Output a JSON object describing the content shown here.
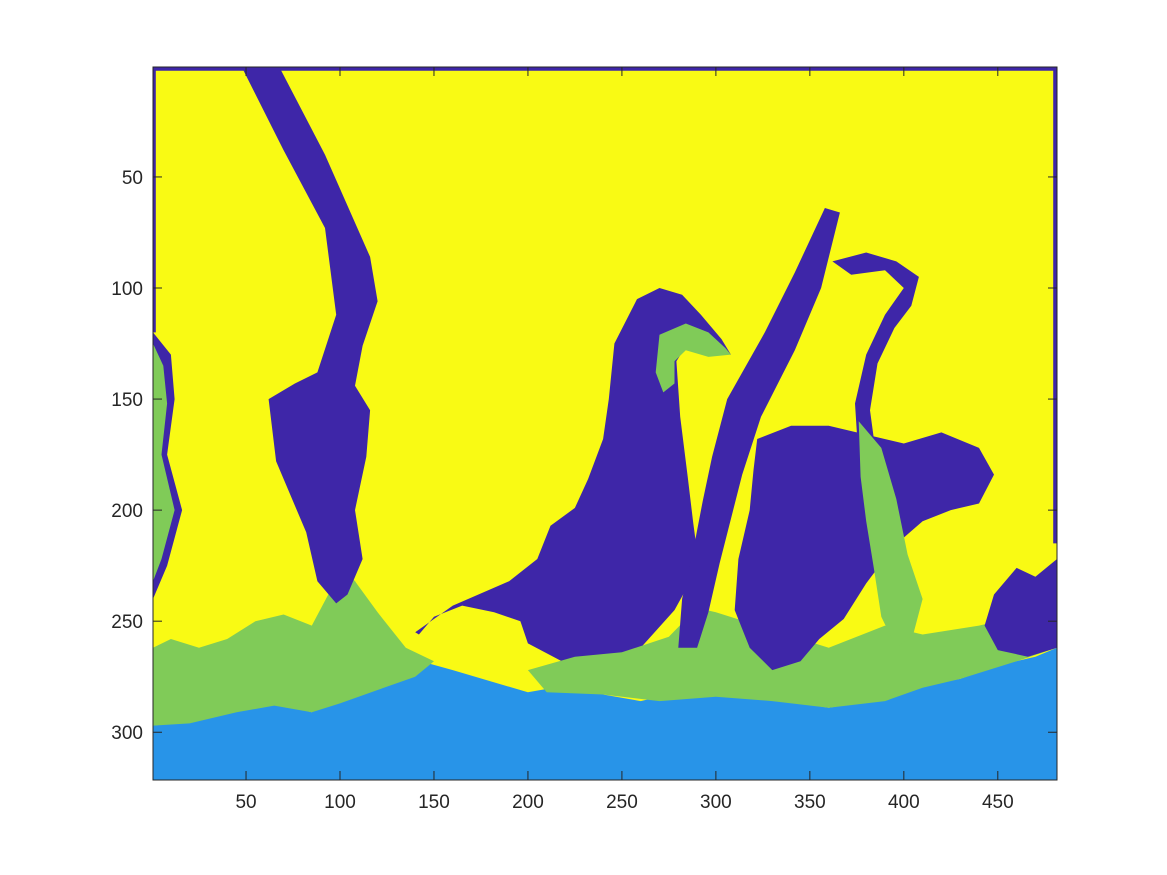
{
  "chart_data": {
    "type": "heatmap",
    "title": "",
    "xlabel": "",
    "ylabel": "",
    "xlim": [
      0.5,
      481.5
    ],
    "ylim": [
      0.5,
      321.5
    ],
    "y_direction": "reversed",
    "grid": false,
    "colorbar": false,
    "x_ticks": [
      50,
      100,
      150,
      200,
      250,
      300,
      350,
      400,
      450
    ],
    "y_ticks": [
      50,
      100,
      150,
      200,
      250,
      300
    ],
    "x_tick_labels": [
      "50",
      "100",
      "150",
      "200",
      "250",
      "300",
      "350",
      "400",
      "450"
    ],
    "y_tick_labels": [
      "50",
      "100",
      "150",
      "200",
      "250",
      "300"
    ],
    "image_size": {
      "columns": 481,
      "rows": 321
    },
    "cluster_labels": [
      1,
      2,
      3,
      4
    ],
    "cluster_colors": {
      "1": "#3e26a8",
      "2": "#2894e8",
      "3": "#80cb58",
      "4": "#f9fa14"
    },
    "background_cluster": 4,
    "regions": [
      {
        "label": 1,
        "name": "bird body",
        "polygon": [
          [
            140,
            255
          ],
          [
            160,
            243
          ],
          [
            190,
            232
          ],
          [
            205,
            222
          ],
          [
            212,
            207
          ],
          [
            225,
            199
          ],
          [
            232,
            186
          ],
          [
            240,
            168
          ],
          [
            243,
            150
          ],
          [
            246,
            125
          ],
          [
            258,
            105
          ],
          [
            270,
            100
          ],
          [
            282,
            103
          ],
          [
            292,
            112
          ],
          [
            303,
            123
          ],
          [
            308,
            130
          ],
          [
            295,
            128
          ],
          [
            285,
            125
          ],
          [
            279,
            133
          ],
          [
            281,
            158
          ],
          [
            285,
            185
          ],
          [
            288,
            206
          ],
          [
            291,
            225
          ],
          [
            278,
            245
          ],
          [
            260,
            262
          ],
          [
            236,
            268
          ],
          [
            218,
            268
          ],
          [
            200,
            260
          ],
          [
            196,
            250
          ],
          [
            182,
            246
          ],
          [
            165,
            243
          ],
          [
            150,
            248
          ],
          [
            142,
            256
          ]
        ]
      },
      {
        "label": 3,
        "name": "beak",
        "polygon": [
          [
            270,
            121
          ],
          [
            284,
            116
          ],
          [
            296,
            120
          ],
          [
            305,
            127
          ],
          [
            308,
            130
          ],
          [
            296,
            131
          ],
          [
            284,
            128
          ],
          [
            278,
            133
          ],
          [
            278,
            143
          ],
          [
            272,
            147
          ],
          [
            268,
            138
          ]
        ]
      },
      {
        "label": 2,
        "name": "water bottom",
        "polygon": [
          [
            0.5,
            321.5
          ],
          [
            0.5,
            297
          ],
          [
            20,
            295
          ],
          [
            45,
            290
          ],
          [
            65,
            287
          ],
          [
            85,
            291
          ],
          [
            95,
            285
          ],
          [
            99,
            262
          ],
          [
            96,
            244
          ],
          [
            108,
            232
          ],
          [
            118,
            248
          ],
          [
            128,
            260
          ],
          [
            143,
            268
          ],
          [
            160,
            272
          ],
          [
            180,
            277
          ],
          [
            200,
            282
          ],
          [
            220,
            279
          ],
          [
            240,
            283
          ],
          [
            260,
            286
          ],
          [
            280,
            282
          ],
          [
            305,
            284
          ],
          [
            330,
            285
          ],
          [
            360,
            289
          ],
          [
            390,
            285
          ],
          [
            410,
            279
          ],
          [
            430,
            276
          ],
          [
            450,
            270
          ],
          [
            470,
            266
          ],
          [
            481.5,
            262
          ],
          [
            481.5,
            321.5
          ]
        ]
      },
      {
        "label": 3,
        "name": "water edge left",
        "polygon": [
          [
            0.5,
            297
          ],
          [
            0.5,
            262
          ],
          [
            10,
            258
          ],
          [
            25,
            262
          ],
          [
            40,
            258
          ],
          [
            55,
            250
          ],
          [
            70,
            247
          ],
          [
            85,
            252
          ],
          [
            95,
            236
          ],
          [
            100,
            225
          ],
          [
            108,
            232
          ],
          [
            120,
            246
          ],
          [
            135,
            262
          ],
          [
            150,
            268
          ],
          [
            140,
            275
          ],
          [
            120,
            281
          ],
          [
            100,
            287
          ],
          [
            85,
            291
          ],
          [
            65,
            288
          ],
          [
            45,
            291
          ],
          [
            20,
            296
          ]
        ]
      },
      {
        "label": 3,
        "name": "water edge right",
        "polygon": [
          [
            200,
            272
          ],
          [
            225,
            266
          ],
          [
            250,
            264
          ],
          [
            275,
            257
          ],
          [
            290,
            244
          ],
          [
            300,
            246
          ],
          [
            330,
            254
          ],
          [
            360,
            262
          ],
          [
            390,
            252
          ],
          [
            410,
            256
          ],
          [
            440,
            252
          ],
          [
            470,
            246
          ],
          [
            481.5,
            244
          ],
          [
            481.5,
            262
          ],
          [
            460,
            268
          ],
          [
            430,
            276
          ],
          [
            410,
            280
          ],
          [
            390,
            286
          ],
          [
            360,
            289
          ],
          [
            330,
            286
          ],
          [
            300,
            284
          ],
          [
            270,
            286
          ],
          [
            240,
            283
          ],
          [
            210,
            282
          ]
        ]
      },
      {
        "label": 3,
        "name": "left plant core",
        "polygon": [
          [
            50,
            1
          ],
          [
            66,
            1
          ],
          [
            88,
            40
          ],
          [
            112,
            88
          ],
          [
            115,
            105
          ],
          [
            108,
            125
          ],
          [
            104,
            145
          ],
          [
            112,
            156
          ],
          [
            110,
            175
          ],
          [
            104,
            200
          ],
          [
            108,
            222
          ],
          [
            102,
            236
          ],
          [
            92,
            232
          ],
          [
            86,
            210
          ],
          [
            72,
            178
          ],
          [
            68,
            150
          ],
          [
            80,
            145
          ],
          [
            94,
            140
          ],
          [
            104,
            110
          ],
          [
            97,
            72
          ],
          [
            74,
            38
          ]
        ]
      },
      {
        "label": 1,
        "name": "left plant outline",
        "polygon": [
          [
            48,
            1
          ],
          [
            68,
            1
          ],
          [
            92,
            40
          ],
          [
            116,
            86
          ],
          [
            120,
            106
          ],
          [
            112,
            126
          ],
          [
            108,
            144
          ],
          [
            116,
            155
          ],
          [
            114,
            176
          ],
          [
            108,
            200
          ],
          [
            112,
            222
          ],
          [
            104,
            238
          ],
          [
            98,
            242
          ],
          [
            88,
            232
          ],
          [
            82,
            210
          ],
          [
            66,
            178
          ],
          [
            62,
            150
          ],
          [
            76,
            143
          ],
          [
            88,
            138
          ],
          [
            98,
            112
          ],
          [
            92,
            73
          ],
          [
            70,
            38
          ]
        ]
      },
      {
        "label": 3,
        "name": "mid plant stem core",
        "polygon": [
          [
            360,
            68
          ],
          [
            362,
            70
          ],
          [
            352,
            100
          ],
          [
            338,
            128
          ],
          [
            318,
            158
          ],
          [
            308,
            182
          ],
          [
            304,
            202
          ],
          [
            298,
            222
          ],
          [
            292,
            244
          ],
          [
            286,
            262
          ],
          [
            283,
            260
          ],
          [
            286,
            240
          ],
          [
            292,
            220
          ],
          [
            297,
            198
          ],
          [
            302,
            178
          ],
          [
            312,
            152
          ],
          [
            332,
            122
          ],
          [
            348,
            95
          ]
        ]
      },
      {
        "label": 1,
        "name": "mid plant stem outline",
        "polygon": [
          [
            358,
            64
          ],
          [
            366,
            66
          ],
          [
            356,
            100
          ],
          [
            342,
            128
          ],
          [
            324,
            158
          ],
          [
            314,
            184
          ],
          [
            308,
            204
          ],
          [
            302,
            224
          ],
          [
            296,
            246
          ],
          [
            290,
            262
          ],
          [
            280,
            262
          ],
          [
            282,
            240
          ],
          [
            288,
            218
          ],
          [
            293,
            196
          ],
          [
            298,
            176
          ],
          [
            306,
            150
          ],
          [
            326,
            120
          ],
          [
            342,
            93
          ]
        ]
      },
      {
        "label": 1,
        "name": "branch arc",
        "polygon": [
          [
            362,
            88
          ],
          [
            380,
            84
          ],
          [
            396,
            88
          ],
          [
            408,
            95
          ],
          [
            404,
            108
          ],
          [
            395,
            118
          ],
          [
            386,
            134
          ],
          [
            382,
            155
          ],
          [
            386,
            180
          ],
          [
            380,
            200
          ],
          [
            374,
            215
          ],
          [
            366,
            220
          ],
          [
            370,
            200
          ],
          [
            376,
            178
          ],
          [
            374,
            152
          ],
          [
            380,
            130
          ],
          [
            390,
            112
          ],
          [
            400,
            100
          ],
          [
            390,
            92
          ],
          [
            372,
            94
          ]
        ]
      },
      {
        "label": 1,
        "name": "right cluster",
        "polygon": [
          [
            322,
            168
          ],
          [
            340,
            162
          ],
          [
            360,
            162
          ],
          [
            380,
            166
          ],
          [
            400,
            170
          ],
          [
            420,
            165
          ],
          [
            440,
            172
          ],
          [
            448,
            184
          ],
          [
            440,
            197
          ],
          [
            425,
            200
          ],
          [
            410,
            205
          ],
          [
            395,
            216
          ],
          [
            380,
            233
          ],
          [
            368,
            249
          ],
          [
            355,
            258
          ],
          [
            345,
            268
          ],
          [
            330,
            272
          ],
          [
            318,
            262
          ],
          [
            310,
            245
          ],
          [
            312,
            222
          ],
          [
            318,
            200
          ],
          [
            320,
            182
          ]
        ]
      },
      {
        "label": 3,
        "name": "right plant core",
        "polygon": [
          [
            376,
            160
          ],
          [
            388,
            172
          ],
          [
            396,
            195
          ],
          [
            402,
            220
          ],
          [
            410,
            240
          ],
          [
            405,
            256
          ],
          [
            396,
            262
          ],
          [
            388,
            248
          ],
          [
            384,
            226
          ],
          [
            380,
            205
          ],
          [
            377,
            185
          ]
        ]
      },
      {
        "label": 1,
        "name": "right shoreline plants",
        "polygon": [
          [
            448,
            238
          ],
          [
            460,
            226
          ],
          [
            470,
            230
          ],
          [
            481.5,
            222
          ],
          [
            481.5,
            262
          ],
          [
            466,
            266
          ],
          [
            450,
            263
          ],
          [
            443,
            252
          ]
        ]
      },
      {
        "label": 1,
        "name": "left edge plants",
        "polygon": [
          [
            0.5,
            120
          ],
          [
            10,
            130
          ],
          [
            12,
            150
          ],
          [
            8,
            175
          ],
          [
            16,
            200
          ],
          [
            8,
            225
          ],
          [
            0.5,
            240
          ]
        ]
      },
      {
        "label": 3,
        "name": "left edge plant core",
        "polygon": [
          [
            0.5,
            125
          ],
          [
            6,
            135
          ],
          [
            8,
            152
          ],
          [
            5,
            175
          ],
          [
            12,
            200
          ],
          [
            5,
            222
          ],
          [
            0.5,
            232
          ]
        ]
      },
      {
        "label": 1,
        "name": "top border",
        "polygon": [
          [
            0.5,
            0.5
          ],
          [
            481.5,
            0.5
          ],
          [
            481.5,
            2.2
          ],
          [
            0.5,
            2.2
          ]
        ]
      },
      {
        "label": 1,
        "name": "right border",
        "polygon": [
          [
            479.5,
            0.5
          ],
          [
            481.5,
            0.5
          ],
          [
            481.5,
            215
          ],
          [
            479.5,
            215
          ]
        ]
      },
      {
        "label": 1,
        "name": "left border",
        "polygon": [
          [
            0.5,
            0.5
          ],
          [
            2,
            0.5
          ],
          [
            2,
            120
          ],
          [
            0.5,
            120
          ]
        ]
      }
    ]
  }
}
